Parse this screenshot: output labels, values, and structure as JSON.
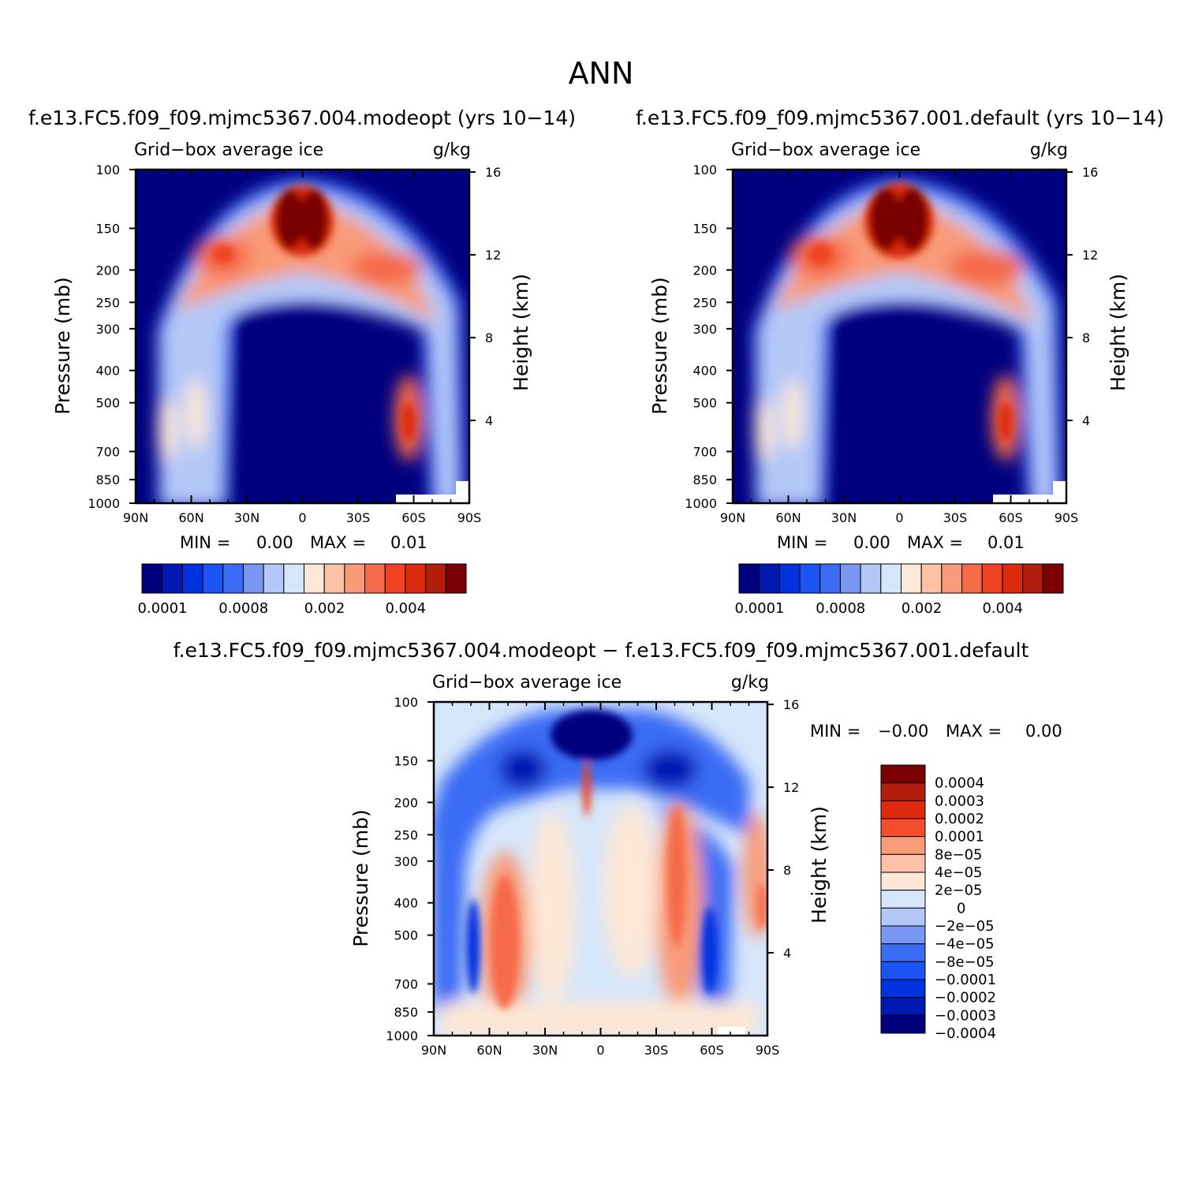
{
  "figure": {
    "season": "ANN"
  },
  "chart_data": [
    {
      "type": "heatmap",
      "title": "f.e13.FC5.f09_f09.mjmc5367.004.modeopt (yrs 10−14)",
      "left_label": "Grid−box average ice",
      "right_label": "g/kg",
      "ylabel": "Pressure (mb)",
      "ylabel_right": "Height (km)",
      "x_ticks": [
        "90N",
        "60N",
        "30N",
        "0",
        "30S",
        "60S",
        "90S"
      ],
      "y_ticks": [
        "100",
        "150",
        "200",
        "250",
        "300",
        "400",
        "500",
        "700",
        "850",
        "1000"
      ],
      "y_ticks_right": [
        "16",
        "12",
        "8",
        "4"
      ],
      "min_label": "MIN =",
      "min_value": "0.00",
      "max_label": "MAX =",
      "max_value": "0.01",
      "colorbar_labels": [
        "0.0001",
        "0.0008",
        "0.002",
        "0.004"
      ],
      "colors": [
        "#00007f",
        "#0019b2",
        "#0032e0",
        "#1b53f5",
        "#3a6cf5",
        "#7896f2",
        "#b4c8f8",
        "#d6e6fa",
        "#fde7d6",
        "#fcc2a8",
        "#f99a78",
        "#f56a48",
        "#ef4222",
        "#dd2a0d",
        "#b31d0b",
        "#7a0004"
      ]
    },
    {
      "type": "heatmap",
      "title": "f.e13.FC5.f09_f09.mjmc5367.001.default (yrs 10−14)",
      "left_label": "Grid−box average ice",
      "right_label": "g/kg",
      "ylabel": "Pressure (mb)",
      "ylabel_right": "Height (km)",
      "x_ticks": [
        "90N",
        "60N",
        "30N",
        "0",
        "30S",
        "60S",
        "90S"
      ],
      "y_ticks": [
        "100",
        "150",
        "200",
        "250",
        "300",
        "400",
        "500",
        "700",
        "850",
        "1000"
      ],
      "y_ticks_right": [
        "16",
        "12",
        "8",
        "4"
      ],
      "min_label": "MIN =",
      "min_value": "0.00",
      "max_label": "MAX =",
      "max_value": "0.01",
      "colorbar_labels": [
        "0.0001",
        "0.0008",
        "0.002",
        "0.004"
      ],
      "colors": [
        "#00007f",
        "#0019b2",
        "#0032e0",
        "#1b53f5",
        "#3a6cf5",
        "#7896f2",
        "#b4c8f8",
        "#d6e6fa",
        "#fde7d6",
        "#fcc2a8",
        "#f99a78",
        "#f56a48",
        "#ef4222",
        "#dd2a0d",
        "#b31d0b",
        "#7a0004"
      ]
    },
    {
      "type": "heatmap",
      "title": "f.e13.FC5.f09_f09.mjmc5367.004.modeopt − f.e13.FC5.f09_f09.mjmc5367.001.default",
      "left_label": "Grid−box average ice",
      "right_label": "g/kg",
      "ylabel": "Pressure (mb)",
      "ylabel_right": "Height (km)",
      "x_ticks": [
        "90N",
        "60N",
        "30N",
        "0",
        "30S",
        "60S",
        "90S"
      ],
      "y_ticks": [
        "100",
        "150",
        "200",
        "250",
        "300",
        "400",
        "500",
        "700",
        "850",
        "1000"
      ],
      "y_ticks_right": [
        "16",
        "12",
        "8",
        "4"
      ],
      "min_label": "MIN =",
      "min_value": "−0.00",
      "max_label": "MAX =",
      "max_value": "0.00",
      "colorbar_labels": [
        "0.0004",
        "0.0003",
        "0.0002",
        "0.0001",
        "8e−05",
        "4e−05",
        "2e−05",
        "0",
        "−2e−05",
        "−4e−05",
        "−8e−05",
        "−0.0001",
        "−0.0002",
        "−0.0003",
        "−0.0004"
      ],
      "colors": [
        "#7a0004",
        "#b31d0b",
        "#dd2a0d",
        "#f54d2c",
        "#f99a78",
        "#fcc2a8",
        "#fde7d6",
        "#d6e6fa",
        "#b4c8f8",
        "#7896f2",
        "#3a6cf5",
        "#1b53f5",
        "#0032e0",
        "#0019b2",
        "#00007f"
      ]
    }
  ]
}
